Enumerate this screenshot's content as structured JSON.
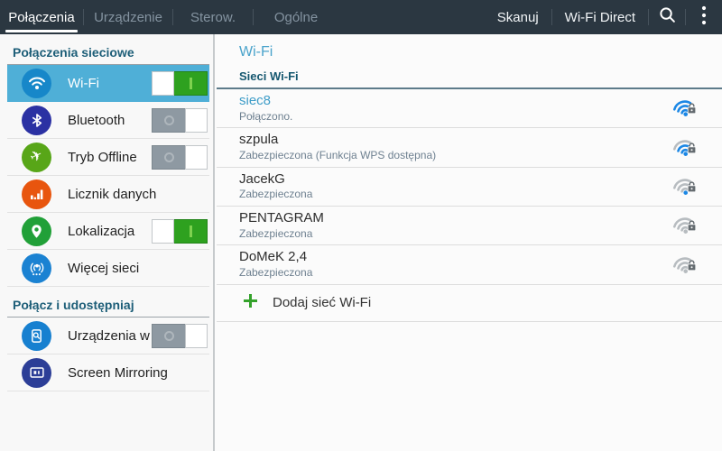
{
  "action_bar": {
    "tabs": [
      {
        "label": "Połączenia",
        "active": true
      },
      {
        "label": "Urządzenie",
        "active": false
      },
      {
        "label": "Sterow.",
        "active": false
      },
      {
        "label": "Ogólne",
        "active": false
      }
    ],
    "actions": [
      {
        "label": "Skanuj"
      },
      {
        "label": "Wi-Fi Direct"
      }
    ],
    "icons": [
      "search-icon",
      "overflow-menu-icon"
    ]
  },
  "sidebar": {
    "sections": [
      {
        "header": "Połączenia sieciowe",
        "items": [
          {
            "slug": "wi-fi",
            "label": "Wi-Fi",
            "icon": "wifi",
            "icon_color": "#1787c9",
            "selected": true,
            "toggle": "on"
          },
          {
            "slug": "bluetooth",
            "label": "Bluetooth",
            "icon": "bluetooth",
            "icon_color": "#2b31a3",
            "selected": false,
            "toggle": "off"
          },
          {
            "slug": "tryb-offline",
            "label": "Tryb Offline",
            "icon": "airplane",
            "icon_color": "#58a618",
            "selected": false,
            "toggle": "off"
          },
          {
            "slug": "licznik-danych",
            "label": "Licznik danych",
            "icon": "data-usage",
            "icon_color": "#e8550e",
            "selected": false,
            "toggle": null
          },
          {
            "slug": "lokalizacja",
            "label": "Lokalizacja",
            "icon": "location-pin",
            "icon_color": "#21a038",
            "selected": false,
            "toggle": "on"
          },
          {
            "slug": "wiecej-sieci",
            "label": "Więcej sieci",
            "icon": "more-networks",
            "icon_color": "#1b82d2",
            "selected": false,
            "toggle": null
          }
        ]
      },
      {
        "header": "Połącz i udostępniaj",
        "items": [
          {
            "slug": "urzadzenia-w-poblizu",
            "label": "Urządzenia w pobl",
            "icon": "nearby-devices",
            "icon_color": "#1780d0",
            "selected": false,
            "toggle": "off"
          },
          {
            "slug": "screen-mirroring",
            "label": "Screen Mirroring",
            "icon": "screen-mirroring",
            "icon_color": "#2c3e97",
            "selected": false,
            "toggle": null
          }
        ]
      }
    ]
  },
  "content": {
    "title": "Wi-Fi",
    "list_header": "Sieci Wi-Fi",
    "networks": [
      {
        "name": "siec8",
        "status": "Połączono.",
        "connected": true,
        "signal": 4,
        "secured": true
      },
      {
        "name": "szpula",
        "status": "Zabezpieczona (Funkcja WPS dostępna)",
        "connected": false,
        "signal": 3,
        "secured": true
      },
      {
        "name": "JacekG",
        "status": "Zabezpieczona",
        "connected": false,
        "signal": 1,
        "secured": true
      },
      {
        "name": "PENTAGRAM",
        "status": "Zabezpieczona",
        "connected": false,
        "signal": 0,
        "secured": true
      },
      {
        "name": "DoMeK 2,4",
        "status": "Zabezpieczona",
        "connected": false,
        "signal": 0,
        "secured": true
      }
    ],
    "add_network_label": "Dodaj sieć Wi-Fi"
  },
  "colors": {
    "actionbar_bg": "#2b3741",
    "tab_active": "#ffffff",
    "tab_inactive": "#8493a0",
    "selected_row": "#4fafd7",
    "section_header": "#1d5e78",
    "panel_title": "#4aa3cb",
    "list_header": "#15576f",
    "header_rule": "#5d7b8a",
    "toggle_on": "#2ea11f",
    "toggle_off": "#8e99a2",
    "wifi_blue": "#1b87e5",
    "wifi_gray": "#b7bcc0",
    "lock_gray": "#646b70",
    "add_plus_green": "#34a22b",
    "connected_name": "#3e9dc8",
    "subtitle": "#6e8090"
  }
}
